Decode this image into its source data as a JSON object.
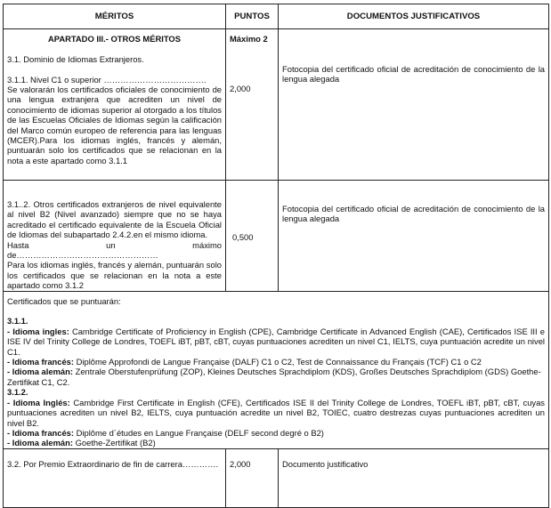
{
  "headers": {
    "meritos": "MÉRITOS",
    "puntos": "PUNTOS",
    "documentos": "DOCUMENTOS JUSTIFICATIVOS"
  },
  "row1": {
    "section_title": "APARTADO III.- OTROS MÉRITOS",
    "max_points": "Máximo 2",
    "subsection": "3.1. Dominio de Idiomas Extranjeros.",
    "item_title": "3.1.1. Nivel C1 o superior  ……………………………….",
    "item_text": "Se valorarán los certificados oficiales de conocimiento de una lengua extranjera que acrediten un nivel de conocimiento de idiomas superior al otorgado a los títulos de las Escuelas Oficiales de Idiomas según la calificación del Marco común europeo de referencia para las lenguas (MCER).Para los idiomas inglés, francés y alemán, puntuarán solo los certificados que se relacionan en la nota a este apartado como 3.1.1",
    "points": "2,000",
    "document": "Fotocopia del certificado oficial de acreditación de conocimiento de la lengua alegada"
  },
  "row2": {
    "item_text": "3.1..2. Otros certificados extranjeros de nivel equivalente al nivel B2 (Nivel avanzado) siempre que no se haya acreditado el certificado equivalente de la Escuela Oficial de Idiomas del subapartado 2.4.2.en el mismo idioma.",
    "max_line": "Hasta un máximo de……………………………………………",
    "note": "Para los idiomas inglés, francés y alemán, puntuarán solo los certificados que se relacionan en la nota a este apartado como 3.1.2",
    "points": "0,500",
    "document": "Fotocopia del certificado oficial de acreditación de conocimiento de la lengua alegada"
  },
  "notes": {
    "intro": "Certificados que se puntuarán:",
    "s311": "3.1.1.",
    "s311_items": [
      {
        "label": "- Idioma ingles:",
        "text": " Cambridge Certificate of Proficiency in English (CPE), Cambridge Certificate in Advanced English (CAE), Certificados ISE III e ISE IV del Trinity College de Londres, TOEFL iBT, pBT, cBT, cuyas puntuaciones acrediten un nivel C1, IELTS, cuya puntuación acredite un nivel C1."
      },
      {
        "label": "- Idioma francés:",
        "text": " Diplôme Approfondi de Langue Française (DALF) C1 o C2, Test de Connaissance du Français (TCF) C1 o C2"
      },
      {
        "label": "- Idioma alemán:",
        "text": " Zentrale Oberstufenprüfung (ZOP), Kleines Deutsches Sprachdiplom (KDS), Großes Deutsches Sprachdiplom (GDS) Goethe-Zertifikat C1, C2."
      }
    ],
    "s312": "3.1.2.",
    "s312_items": [
      {
        "label": "- Idioma Inglés:",
        "text": " Cambridge First Certificate in English (CFE), Certificados ISE II del Trinity College de Londres, TOEFL iBT, pBT, cBT, cuyas puntuaciones acrediten un nivel B2, IELTS, cuya puntuación acredite un nivel B2, TOIEC, cuatro destrezas cuyas puntuaciones acrediten un nivel B2."
      },
      {
        "label": "- Idioma francés:",
        "text": " Diplôme d´études en Langue Française (DELF second degré o B2)"
      },
      {
        "label": "- Idioma alemán:",
        "text": " Goethe-Zertifikat (B2)"
      }
    ]
  },
  "row4": {
    "item_text": "3.2. Por Premio Extraordinario de fin de carrera………….",
    "points": "2,000",
    "document": "Documento justificativo"
  }
}
